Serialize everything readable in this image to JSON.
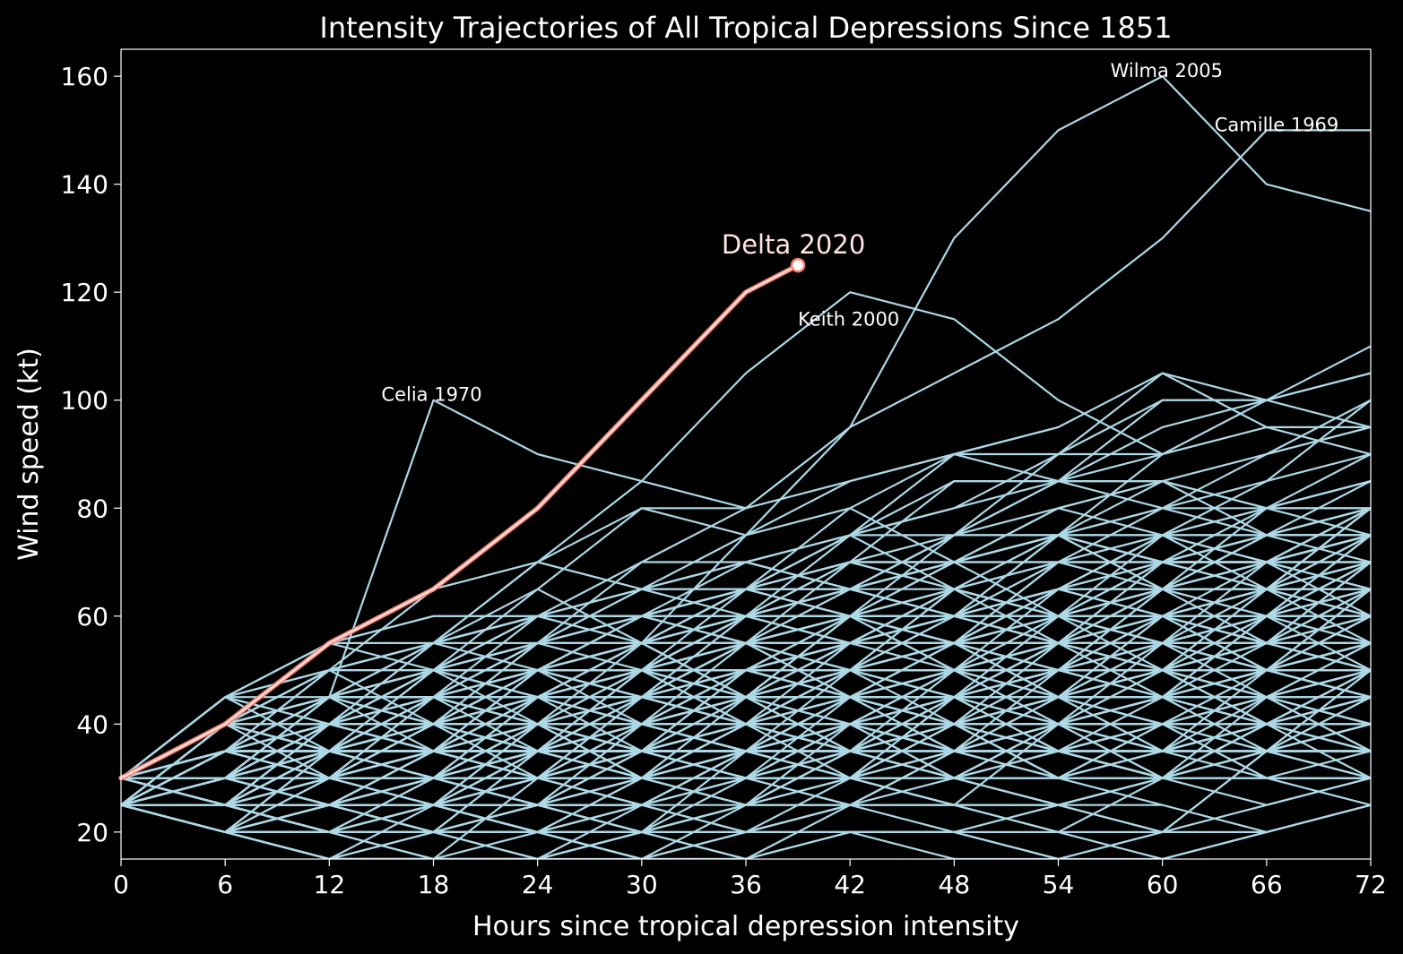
{
  "chart_data": {
    "type": "line",
    "title": "Intensity Trajectories of All Tropical Depressions Since 1851",
    "xlabel": "Hours since tropical depression intensity",
    "ylabel": "Wind speed (kt)",
    "xlim": [
      0,
      72
    ],
    "ylim": [
      15,
      165
    ],
    "xticks": [
      0,
      6,
      12,
      18,
      24,
      30,
      36,
      42,
      48,
      54,
      60,
      66,
      72
    ],
    "yticks": [
      20,
      40,
      60,
      80,
      100,
      120,
      140,
      160
    ],
    "grid": false,
    "legend": "none",
    "colors": {
      "background": "#000000",
      "historical": "#add8e6",
      "highlight": "#fa8072",
      "highlight_core": "#fff0ea",
      "text": "#ffffff",
      "highlight_label": "#ffe4e1"
    },
    "highlight": {
      "name": "Delta 2020",
      "x": [
        0,
        6,
        12,
        18,
        24,
        30,
        36,
        39
      ],
      "y": [
        30,
        40,
        55,
        65,
        80,
        100,
        120,
        125
      ]
    },
    "labeled_series": [
      {
        "name": "Celia 1970",
        "x": [
          0,
          6,
          12,
          18,
          24,
          30,
          36
        ],
        "y": [
          25,
          35,
          45,
          100,
          90,
          85,
          80
        ]
      },
      {
        "name": "Keith 2000",
        "x": [
          0,
          6,
          12,
          18,
          24,
          30,
          36,
          42,
          48,
          54,
          60
        ],
        "y": [
          30,
          35,
          45,
          55,
          70,
          85,
          105,
          120,
          115,
          100,
          90
        ]
      },
      {
        "name": "Wilma 2005",
        "x": [
          0,
          6,
          12,
          18,
          24,
          30,
          36,
          42,
          48,
          54,
          60,
          66,
          72
        ],
        "y": [
          25,
          30,
          35,
          40,
          45,
          55,
          75,
          95,
          130,
          150,
          160,
          140,
          135
        ]
      },
      {
        "name": "Camille 1969",
        "x": [
          0,
          6,
          12,
          18,
          24,
          30,
          36,
          42,
          48,
          54,
          60,
          66,
          72
        ],
        "y": [
          25,
          35,
          40,
          50,
          60,
          70,
          80,
          95,
          105,
          115,
          130,
          150,
          150
        ]
      }
    ],
    "background_series_count": 320,
    "background_series_note": "many historical trajectories at 6-hour steps (0–72 h), wind speeds in 5-kt increments, roughly 15–150 kt"
  }
}
